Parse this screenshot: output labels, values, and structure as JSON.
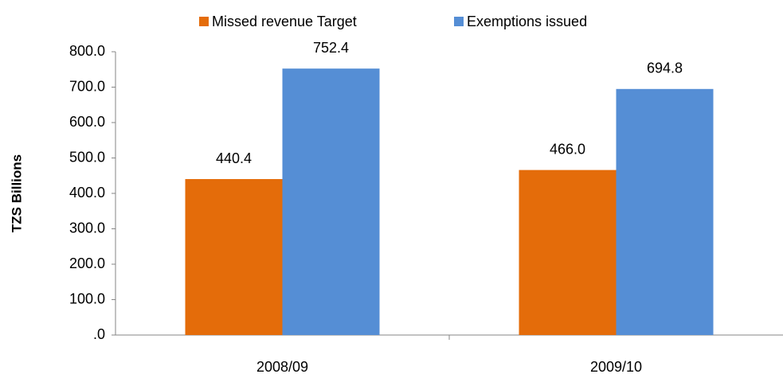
{
  "chart_data": {
    "type": "bar",
    "y_label": "TZS Billions",
    "categories": [
      "2008/09",
      "2009/10"
    ],
    "series": [
      {
        "name": "Missed revenue Target",
        "color": "#e46c0a",
        "values": [
          440.4,
          466.0
        ],
        "value_labels": [
          "440.4",
          "466.0"
        ]
      },
      {
        "name": "Exemptions issued",
        "color": "#558ed5",
        "values": [
          752.4,
          694.8
        ],
        "value_labels": [
          "752.4",
          "694.8"
        ]
      }
    ],
    "ylim": [
      0,
      800
    ],
    "yticks": [
      {
        "value": 0,
        "label": ".0"
      },
      {
        "value": 100,
        "label": "100.0"
      },
      {
        "value": 200,
        "label": "200.0"
      },
      {
        "value": 300,
        "label": "300.0"
      },
      {
        "value": 400,
        "label": "400.0"
      },
      {
        "value": 500,
        "label": "500.0"
      },
      {
        "value": 600,
        "label": "600.0"
      },
      {
        "value": 700,
        "label": "700.0"
      },
      {
        "value": 800,
        "label": "800.0"
      }
    ],
    "legend": "top"
  }
}
